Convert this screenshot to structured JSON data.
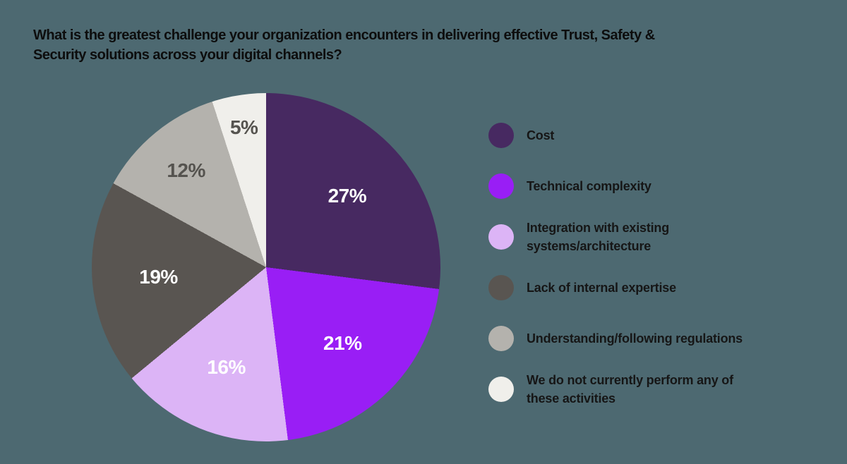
{
  "colors": {
    "background": "#4d6971",
    "title_text": "#0d0d0d",
    "legend_text": "#161616"
  },
  "chart_data": {
    "type": "pie",
    "title": "What is the greatest challenge your organization encounters in delivering effective Trust, Safety &\nSecurity solutions across your digital channels?",
    "value_suffix": "%",
    "start_angle_deg": 0,
    "direction": "clockwise",
    "legend_position": "right",
    "slices": [
      {
        "label": "Cost",
        "value": 27,
        "color": "#472961",
        "label_color": "#ffffff"
      },
      {
        "label": "Technical complexity",
        "value": 21,
        "color": "#991ef5",
        "label_color": "#ffffff"
      },
      {
        "label": "Integration with existing\nsystems/architecture",
        "value": 16,
        "color": "#dcb4f6",
        "label_color": "#ffffff"
      },
      {
        "label": "Lack of internal expertise",
        "value": 19,
        "color": "#595551",
        "label_color": "#ffffff"
      },
      {
        "label": "Understanding/following regulations",
        "value": 12,
        "color": "#b4b2ad",
        "label_color": "#55534f"
      },
      {
        "label": "We do not currently perform any of\nthese activities",
        "value": 5,
        "color": "#f0efeb",
        "label_color": "#55534f"
      }
    ]
  }
}
